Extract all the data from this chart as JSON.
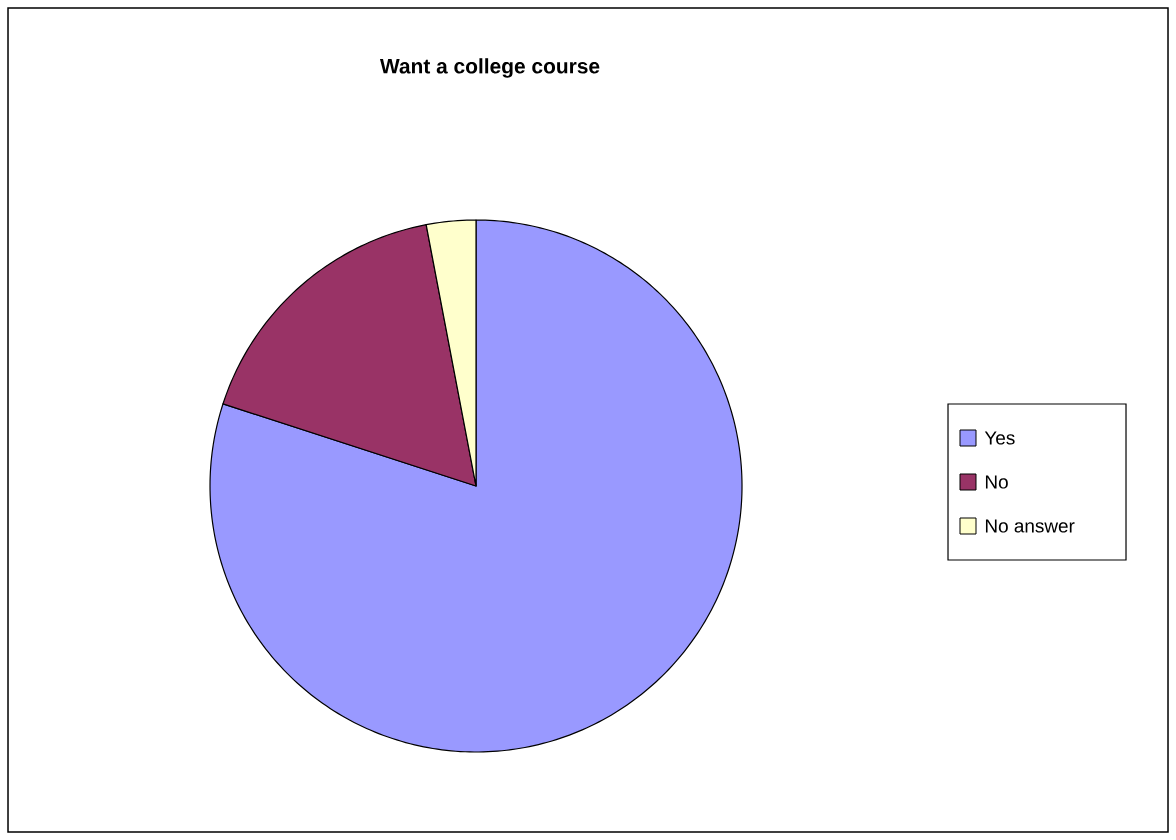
{
  "chart_data": {
    "type": "pie",
    "title": "Want a college course",
    "categories": [
      "Yes",
      "No",
      "No answer"
    ],
    "values": [
      80,
      17,
      3
    ],
    "colors": [
      "#9999ff",
      "#993366",
      "#ffffcc"
    ],
    "legend": "right"
  }
}
